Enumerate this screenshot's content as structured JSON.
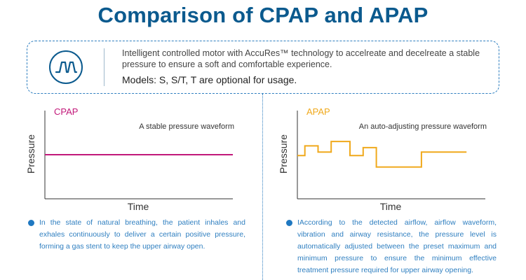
{
  "title": "Comparison of CPAP and APAP",
  "info": {
    "icon": "pressure-wave-icon",
    "description": "Intelligent controlled motor with AccuRes™ technology to accelreate and decelreate a stable pressure to ensure a soft and comfortable experience.",
    "models": "Models: S, S/T, T are optional for usage."
  },
  "colors": {
    "title": "#0b5a8e",
    "accent": "#2f7fc0",
    "cpap": "#c2187a",
    "apap": "#f0a91c"
  },
  "chart_data": [
    {
      "type": "line",
      "title": "CPAP",
      "subtitle": "A stable pressure waveform",
      "xlabel": "Time",
      "ylabel": "Pressure",
      "series": [
        {
          "name": "CPAP",
          "x": [
            0,
            100
          ],
          "y": [
            5,
            5
          ]
        }
      ]
    },
    {
      "type": "line",
      "title": "APAP",
      "subtitle": "An auto-adjusting pressure waveform",
      "xlabel": "Time",
      "ylabel": "Pressure",
      "series": [
        {
          "name": "APAP",
          "x": [
            0,
            4,
            4,
            11,
            11,
            18,
            18,
            28,
            28,
            35,
            35,
            42,
            42,
            66,
            66,
            90
          ],
          "y": [
            4.9,
            4.9,
            6,
            6,
            5.3,
            5.3,
            6.5,
            6.5,
            4.9,
            4.9,
            5.8,
            5.8,
            3.6,
            3.6,
            5.3,
            5.3
          ]
        }
      ]
    }
  ],
  "notes": [
    "In the state of natural breathing, the patient inhales and exhales continuously to deliver a certain positive pressure, forming a gas stent to keep the upper airway open.",
    "IAccording to the detected airflow, airflow waveform, vibration and airway resistance, the pressure level is automatically adjusted between the preset maximum and minimum pressure to ensure the minimum effective treatment pressure required for upper airway opening."
  ]
}
